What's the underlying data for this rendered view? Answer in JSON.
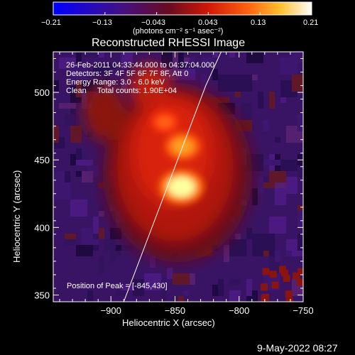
{
  "chart_data": {
    "type": "heatmap",
    "title": "Reconstructed RHESSI Image",
    "xlabel": "Heliocentric X (arcsec)",
    "ylabel": "Heliocentric Y (arcsec)",
    "xlim": [
      -945,
      -750
    ],
    "ylim": [
      345,
      530
    ],
    "xticks": [
      -900,
      -850,
      -800,
      -750
    ],
    "yticks": [
      350,
      400,
      450,
      500
    ],
    "colorbar": {
      "label": "(photons cm⁻² s⁻¹ asec⁻²)",
      "range": [
        -0.21,
        0.21
      ],
      "ticks": [
        "−0.21",
        "−0.13",
        "−0.043",
        "0.043",
        "0.13",
        "0.21"
      ],
      "colormap": "blue-purple-red-yellow-white"
    },
    "info_lines": [
      "26-Feb-2011 04:33:44.000 to 04:37:04.000",
      "Detectors: 3F 4F 5F 6F 7F 8F, Att 0",
      "Energy Range: 3.0 - 6.0 keV",
      "Clean     Total counts: 1.90E+04"
    ],
    "peak_label": "Position of Peak = [-845,430]",
    "sources": [
      {
        "x": -845,
        "y": 430,
        "intensity": 0.21
      },
      {
        "x": -844,
        "y": 460,
        "intensity": 0.15
      },
      {
        "x": -858,
        "y": 478,
        "intensity": 0.09
      }
    ],
    "limb_curve": [
      [
        -890,
        345
      ],
      [
        -872,
        390
      ],
      [
        -856,
        430
      ],
      [
        -840,
        470
      ],
      [
        -826,
        505
      ],
      [
        -814,
        530
      ]
    ]
  },
  "footer": {
    "date": "9-May-2022 08:27"
  },
  "colors": {
    "background": "#000000",
    "text": "#ffffff"
  }
}
